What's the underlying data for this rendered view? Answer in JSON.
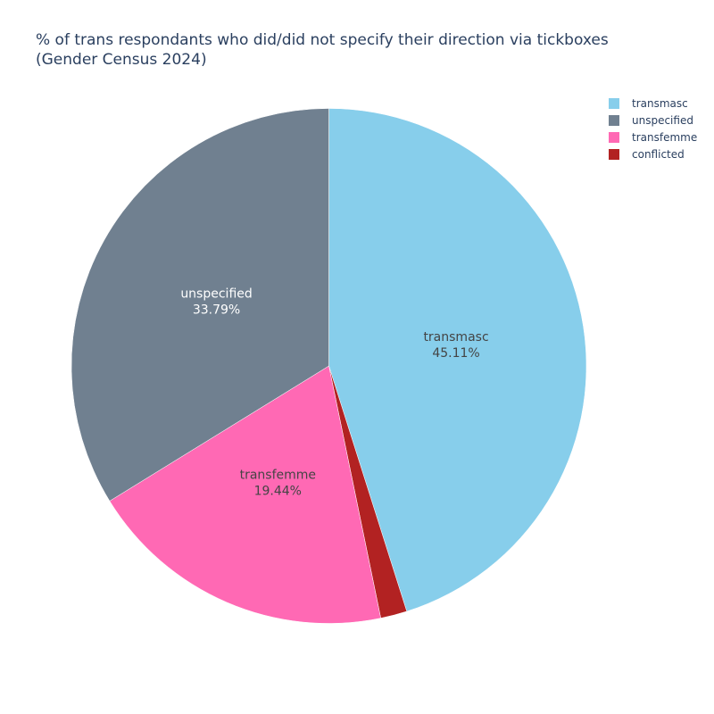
{
  "title_lines": [
    "% of trans respondants who did/did not specify their direction via tickboxes",
    "(Gender Census 2024)"
  ],
  "chart_data": {
    "type": "pie",
    "title": "% of trans respondants who did/did not specify their direction via tickboxes (Gender Census 2024)",
    "direction": "clockwise",
    "start": "12 o'clock",
    "legend_placement": "top-right",
    "slices": [
      {
        "label": "transmasc",
        "value": 45.11,
        "value_text": "45.11%",
        "color": "#87ceeb",
        "label_color": "#444444"
      },
      {
        "label": "conflicted",
        "value": 1.66,
        "value_text": "",
        "color": "#b22222",
        "label_color": "#ffffff"
      },
      {
        "label": "transfemme",
        "value": 19.44,
        "value_text": "19.44%",
        "color": "#ff69b4",
        "label_color": "#444444"
      },
      {
        "label": "unspecified",
        "value": 33.79,
        "value_text": "33.79%",
        "color": "#708090",
        "label_color": "#ffffff"
      }
    ],
    "legend_order": [
      "transmasc",
      "unspecified",
      "transfemme",
      "conflicted"
    ]
  }
}
